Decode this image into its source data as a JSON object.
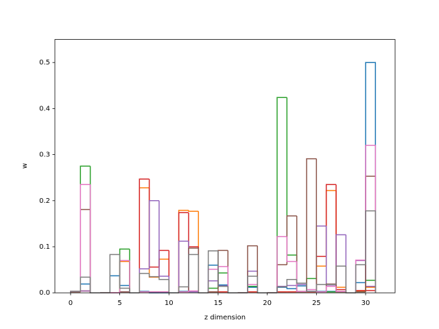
{
  "chart_data": {
    "type": "histogram",
    "xlabel": "z dimension",
    "ylabel": "w",
    "bins": [
      0,
      1,
      2,
      3,
      4,
      5,
      6,
      7,
      8,
      9,
      10,
      11,
      12,
      13,
      14,
      15,
      16,
      17,
      18,
      19,
      20,
      21,
      22,
      23,
      24,
      25,
      26,
      27,
      28,
      29,
      30,
      31
    ],
    "series": [
      {
        "color": "#1f77b4",
        "values": [
          0.003,
          0.019,
          0,
          0,
          0.037,
          0.016,
          0,
          0.003,
          0,
          0,
          0,
          0.003,
          0.002,
          0,
          0.06,
          0.017,
          0,
          0,
          0.012,
          0,
          0,
          0.012,
          0.009,
          0.015,
          0.003,
          0.003,
          0.003,
          0.003,
          0,
          0.022,
          0.5
        ]
      },
      {
        "color": "#ff7f0e",
        "values": [
          0.003,
          0.004,
          0,
          0,
          0,
          0.068,
          0,
          0.228,
          0.034,
          0.073,
          0,
          0.179,
          0.177,
          0,
          0.002,
          0.002,
          0,
          0,
          0.002,
          0,
          0,
          0.002,
          0.002,
          0.002,
          0.002,
          0.058,
          0.222,
          0.012,
          0,
          0.003,
          0.012
        ]
      },
      {
        "color": "#2ca02c",
        "values": [
          0.003,
          0.275,
          0,
          0,
          0,
          0.095,
          0,
          0.002,
          0.002,
          0.002,
          0,
          0.002,
          0.002,
          0,
          0.01,
          0.043,
          0,
          0,
          0.014,
          0,
          0,
          0.424,
          0.082,
          0.003,
          0.031,
          0.002,
          0.002,
          0.002,
          0,
          0.002,
          0.027
        ]
      },
      {
        "color": "#d62728",
        "values": [
          0.002,
          0.004,
          0,
          0,
          0,
          0.002,
          0,
          0.247,
          0.056,
          0.092,
          0,
          0.174,
          0.1,
          0,
          0.002,
          0.002,
          0,
          0,
          0.002,
          0,
          0,
          0.002,
          0.002,
          0.002,
          0.002,
          0.079,
          0.235,
          0.007,
          0,
          0.005,
          0.005
        ]
      },
      {
        "color": "#9467bd",
        "values": [
          0.003,
          0.004,
          0,
          0,
          0,
          0.002,
          0,
          0.052,
          0.2,
          0.036,
          0,
          0.112,
          0.002,
          0,
          0.026,
          0.015,
          0,
          0,
          0.047,
          0,
          0,
          0.014,
          0.016,
          0.018,
          0.003,
          0.145,
          0.015,
          0.126,
          0,
          0.07,
          0.014
        ]
      },
      {
        "color": "#8c564b",
        "values": [
          0.002,
          0.181,
          0,
          0,
          0,
          0.002,
          0,
          0.002,
          0.002,
          0.002,
          0,
          0.002,
          0.097,
          0,
          0.002,
          0.092,
          0,
          0,
          0.102,
          0,
          0,
          0.061,
          0.167,
          0.002,
          0.291,
          0.002,
          0.019,
          0.002,
          0,
          0.002,
          0.253
        ]
      },
      {
        "color": "#e377c2",
        "values": [
          0.003,
          0.235,
          0,
          0,
          0,
          0.07,
          0,
          0.002,
          0.002,
          0.002,
          0,
          0.002,
          0.004,
          0,
          0.051,
          0.057,
          0,
          0,
          0.018,
          0,
          0,
          0.122,
          0.068,
          0.003,
          0.007,
          0.002,
          0.014,
          0.003,
          0,
          0.071,
          0.32
        ]
      },
      {
        "color": "#7f7f7f",
        "values": [
          0.003,
          0.034,
          0,
          0,
          0.083,
          0.01,
          0,
          0.042,
          0.035,
          0.029,
          0,
          0.013,
          0.083,
          0,
          0.091,
          0.014,
          0,
          0,
          0.036,
          0,
          0,
          0.013,
          0.029,
          0.021,
          0.003,
          0.018,
          0.018,
          0.058,
          0,
          0.061,
          0.178
        ]
      }
    ],
    "xlim": [
      -1.6,
      33.0
    ],
    "ylim": [
      0,
      0.55
    ],
    "xticks": [
      0,
      5,
      10,
      15,
      20,
      25,
      30
    ],
    "yticks": [
      {
        "value": 0,
        "label": "0.0"
      },
      0.1,
      0.2,
      0.3,
      0.4,
      0.5
    ],
    "grid": false
  }
}
